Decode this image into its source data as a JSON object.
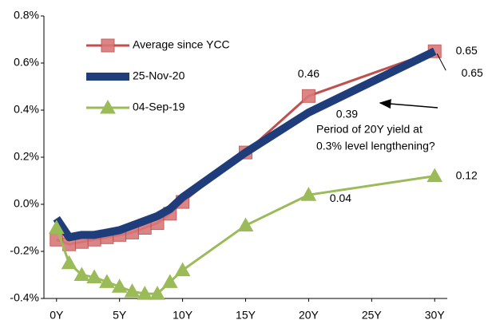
{
  "chart_data": {
    "type": "line",
    "x": [
      0,
      1,
      2,
      3,
      4,
      5,
      6,
      7,
      8,
      9,
      10,
      15,
      20,
      30
    ],
    "xlim": [
      -1,
      31
    ],
    "xticks": [
      {
        "value": 0,
        "label": "0Y"
      },
      {
        "value": 5,
        "label": "5Y"
      },
      {
        "value": 10,
        "label": "10Y"
      },
      {
        "value": 15,
        "label": "15Y"
      },
      {
        "value": 20,
        "label": "20Y"
      },
      {
        "value": 25,
        "label": "25Y"
      },
      {
        "value": 30,
        "label": "30Y"
      }
    ],
    "ylim": [
      -0.4,
      0.8
    ],
    "yticks": [
      {
        "value": -0.4,
        "label": "-0.4%"
      },
      {
        "value": -0.2,
        "label": "-0.2%"
      },
      {
        "value": 0,
        "label": "0.0%"
      },
      {
        "value": 0.2,
        "label": "0.2%"
      },
      {
        "value": 0.4,
        "label": "0.4%"
      },
      {
        "value": 0.6,
        "label": "0.6%"
      },
      {
        "value": 0.8,
        "label": "0.8%"
      }
    ],
    "grid": false,
    "legend": "upper left",
    "series": [
      {
        "name": "Average since YCC",
        "color": "#c0504d",
        "marker": "square",
        "line_width": 3,
        "values": [
          -0.15,
          -0.17,
          -0.16,
          -0.15,
          -0.14,
          -0.13,
          -0.12,
          -0.1,
          -0.08,
          -0.04,
          0.01,
          0.22,
          0.46,
          0.65
        ]
      },
      {
        "name": "25-Nov-20",
        "color": "#1f3d7a",
        "marker": "none",
        "line_width": 10,
        "values": [
          -0.06,
          -0.14,
          -0.13,
          -0.13,
          -0.12,
          -0.11,
          -0.09,
          -0.07,
          -0.05,
          -0.02,
          0.03,
          0.22,
          0.39,
          0.65
        ]
      },
      {
        "name": "04-Sep-19",
        "color": "#9bbb59",
        "marker": "triangle",
        "line_width": 3,
        "values": [
          -0.1,
          -0.25,
          -0.3,
          -0.31,
          -0.33,
          -0.35,
          -0.37,
          -0.38,
          -0.38,
          -0.33,
          -0.28,
          -0.09,
          0.04,
          0.12
        ]
      }
    ],
    "annotation": [
      "Period of 20Y yield at",
      "0.3% level lengthening?"
    ]
  }
}
